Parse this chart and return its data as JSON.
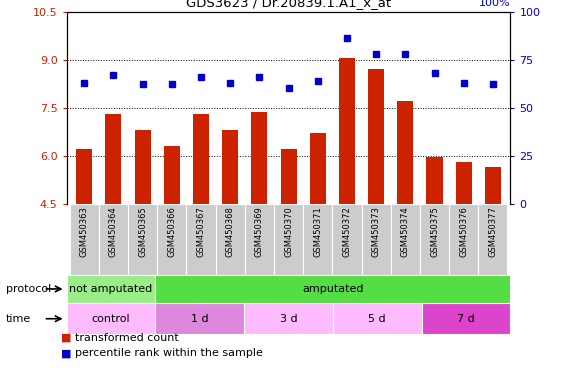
{
  "title": "GDS3623 / Dr.20839.1.A1_x_at",
  "samples": [
    "GSM450363",
    "GSM450364",
    "GSM450365",
    "GSM450366",
    "GSM450367",
    "GSM450368",
    "GSM450369",
    "GSM450370",
    "GSM450371",
    "GSM450372",
    "GSM450373",
    "GSM450374",
    "GSM450375",
    "GSM450376",
    "GSM450377"
  ],
  "bar_values": [
    6.2,
    7.3,
    6.8,
    6.3,
    7.3,
    6.8,
    7.35,
    6.2,
    6.7,
    9.05,
    8.7,
    7.7,
    5.95,
    5.8,
    5.65
  ],
  "dot_values": [
    63,
    67,
    62,
    62,
    66,
    63,
    66,
    60,
    64,
    86,
    78,
    78,
    68,
    63,
    62
  ],
  "bar_color": "#cc2200",
  "dot_color": "#0000cc",
  "ylim_left": [
    4.5,
    10.5
  ],
  "ylim_right": [
    0,
    100
  ],
  "yticks_left": [
    4.5,
    6.0,
    7.5,
    9.0,
    10.5
  ],
  "yticks_right": [
    0,
    25,
    50,
    75,
    100
  ],
  "grid_values": [
    6.0,
    7.5,
    9.0
  ],
  "protocol_labels": [
    {
      "text": "not amputated",
      "start": 0,
      "end": 3,
      "color": "#99ee88"
    },
    {
      "text": "amputated",
      "start": 3,
      "end": 15,
      "color": "#55dd44"
    }
  ],
  "time_labels": [
    {
      "text": "control",
      "start": 0,
      "end": 3,
      "color": "#ffbbff"
    },
    {
      "text": "1 d",
      "start": 3,
      "end": 6,
      "color": "#dd88dd"
    },
    {
      "text": "3 d",
      "start": 6,
      "end": 9,
      "color": "#ffbbff"
    },
    {
      "text": "5 d",
      "start": 9,
      "end": 12,
      "color": "#ffbbff"
    },
    {
      "text": "7 d",
      "start": 12,
      "end": 15,
      "color": "#dd44cc"
    }
  ],
  "legend_items": [
    {
      "label": "transformed count",
      "color": "#cc2200"
    },
    {
      "label": "percentile rank within the sample",
      "color": "#0000cc"
    }
  ],
  "right_axis_label_color": "#0000cc",
  "left_axis_label_color": "#cc2200",
  "label_bg_color": "#cccccc",
  "label_border_color": "#aaaaaa"
}
